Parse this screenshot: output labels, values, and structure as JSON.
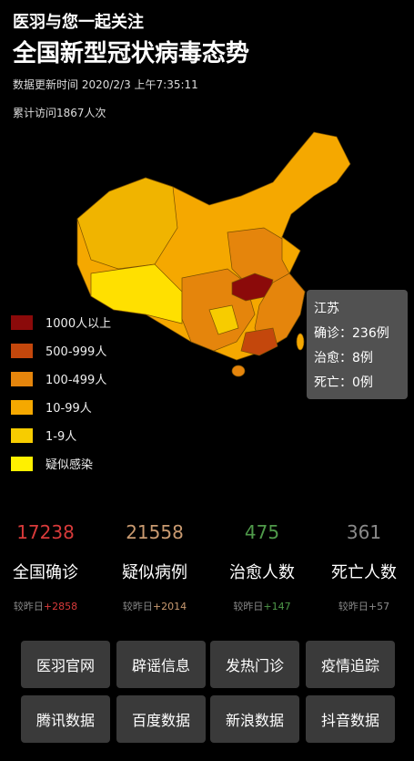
{
  "header": {
    "subtitle": "医羽与您一起关注",
    "title": "全国新型冠状病毒态势",
    "update_time": "数据更新时间 2020/2/3 上午7:35:11",
    "visits": "累计访问1867人次"
  },
  "legend": [
    {
      "label": "1000人以上",
      "color": "#8b0a0a"
    },
    {
      "label": "500-999人",
      "color": "#c4470c"
    },
    {
      "label": "100-499人",
      "color": "#e5850c"
    },
    {
      "label": "10-99人",
      "color": "#f5a800"
    },
    {
      "label": "1-9人",
      "color": "#f7cc00"
    },
    {
      "label": "疑似感染",
      "color": "#fff000"
    }
  ],
  "tooltip": {
    "province": "江苏",
    "lines": [
      "确诊：236例",
      "治愈：8例",
      "死亡：0例"
    ]
  },
  "stats": [
    {
      "value": "17238",
      "label": "全国确诊",
      "compare_label": "较昨日",
      "delta": "+2858",
      "color": "#d83a3a"
    },
    {
      "value": "21558",
      "label": "疑似病例",
      "compare_label": "较昨日",
      "delta": "+2014",
      "color": "#c99a70"
    },
    {
      "value": "475",
      "label": "治愈人数",
      "compare_label": "较昨日",
      "delta": "+147",
      "color": "#4f9a4a"
    },
    {
      "value": "361",
      "label": "死亡人数",
      "compare_label": "较昨日",
      "delta": "+57",
      "color": "#8a8a8a"
    }
  ],
  "buttons": [
    "医羽官网",
    "辟谣信息",
    "发热门诊",
    "疫情追踪",
    "腾讯数据",
    "百度数据",
    "新浪数据",
    "抖音数据"
  ]
}
